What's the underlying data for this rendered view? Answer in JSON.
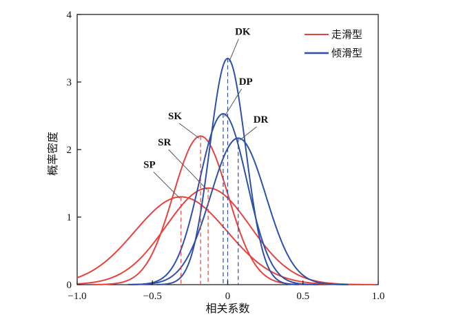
{
  "chart_data": {
    "type": "line",
    "title": "",
    "xlabel": "相关系数",
    "ylabel": "概率密度",
    "xlim": [
      -1.0,
      1.0
    ],
    "ylim": [
      0,
      4
    ],
    "x_ticks": [
      -1.0,
      -0.5,
      0,
      0.5,
      1.0
    ],
    "x_tick_labels": [
      "−1.0",
      "−0.5",
      "0",
      "0.5",
      "1.0"
    ],
    "y_ticks": [
      0,
      1,
      2,
      3,
      4
    ],
    "y_tick_labels": [
      "0",
      "1",
      "2",
      "3",
      "4"
    ],
    "grid": false,
    "legend": {
      "placement": "top-right",
      "entries": [
        {
          "label": "走滑型",
          "color": "#e8413c"
        },
        {
          "label": "倾滑型",
          "color": "#2d4fa8"
        }
      ]
    },
    "series": [
      {
        "group": "走滑型",
        "label": "SK",
        "color": "#e8413c",
        "mean": -0.18,
        "peak": 2.2,
        "label_x": -0.35,
        "label_y": 2.45
      },
      {
        "group": "走滑型",
        "label": "SR",
        "color": "#e8413c",
        "mean": -0.13,
        "peak": 1.43,
        "label_x": -0.42,
        "label_y": 2.06
      },
      {
        "group": "走滑型",
        "label": "SP",
        "color": "#e8413c",
        "mean": -0.31,
        "peak": 1.3,
        "label_x": -0.52,
        "label_y": 1.73
      },
      {
        "group": "倾滑型",
        "label": "DK",
        "color": "#2d4fa8",
        "mean": 0.0,
        "peak": 3.35,
        "label_x": 0.1,
        "label_y": 3.7
      },
      {
        "group": "倾滑型",
        "label": "DP",
        "color": "#2d4fa8",
        "mean": -0.03,
        "peak": 2.53,
        "label_x": 0.12,
        "label_y": 2.96
      },
      {
        "group": "倾滑型",
        "label": "DR",
        "color": "#2d4fa8",
        "mean": 0.07,
        "peak": 2.17,
        "label_x": 0.22,
        "label_y": 2.4
      }
    ]
  }
}
